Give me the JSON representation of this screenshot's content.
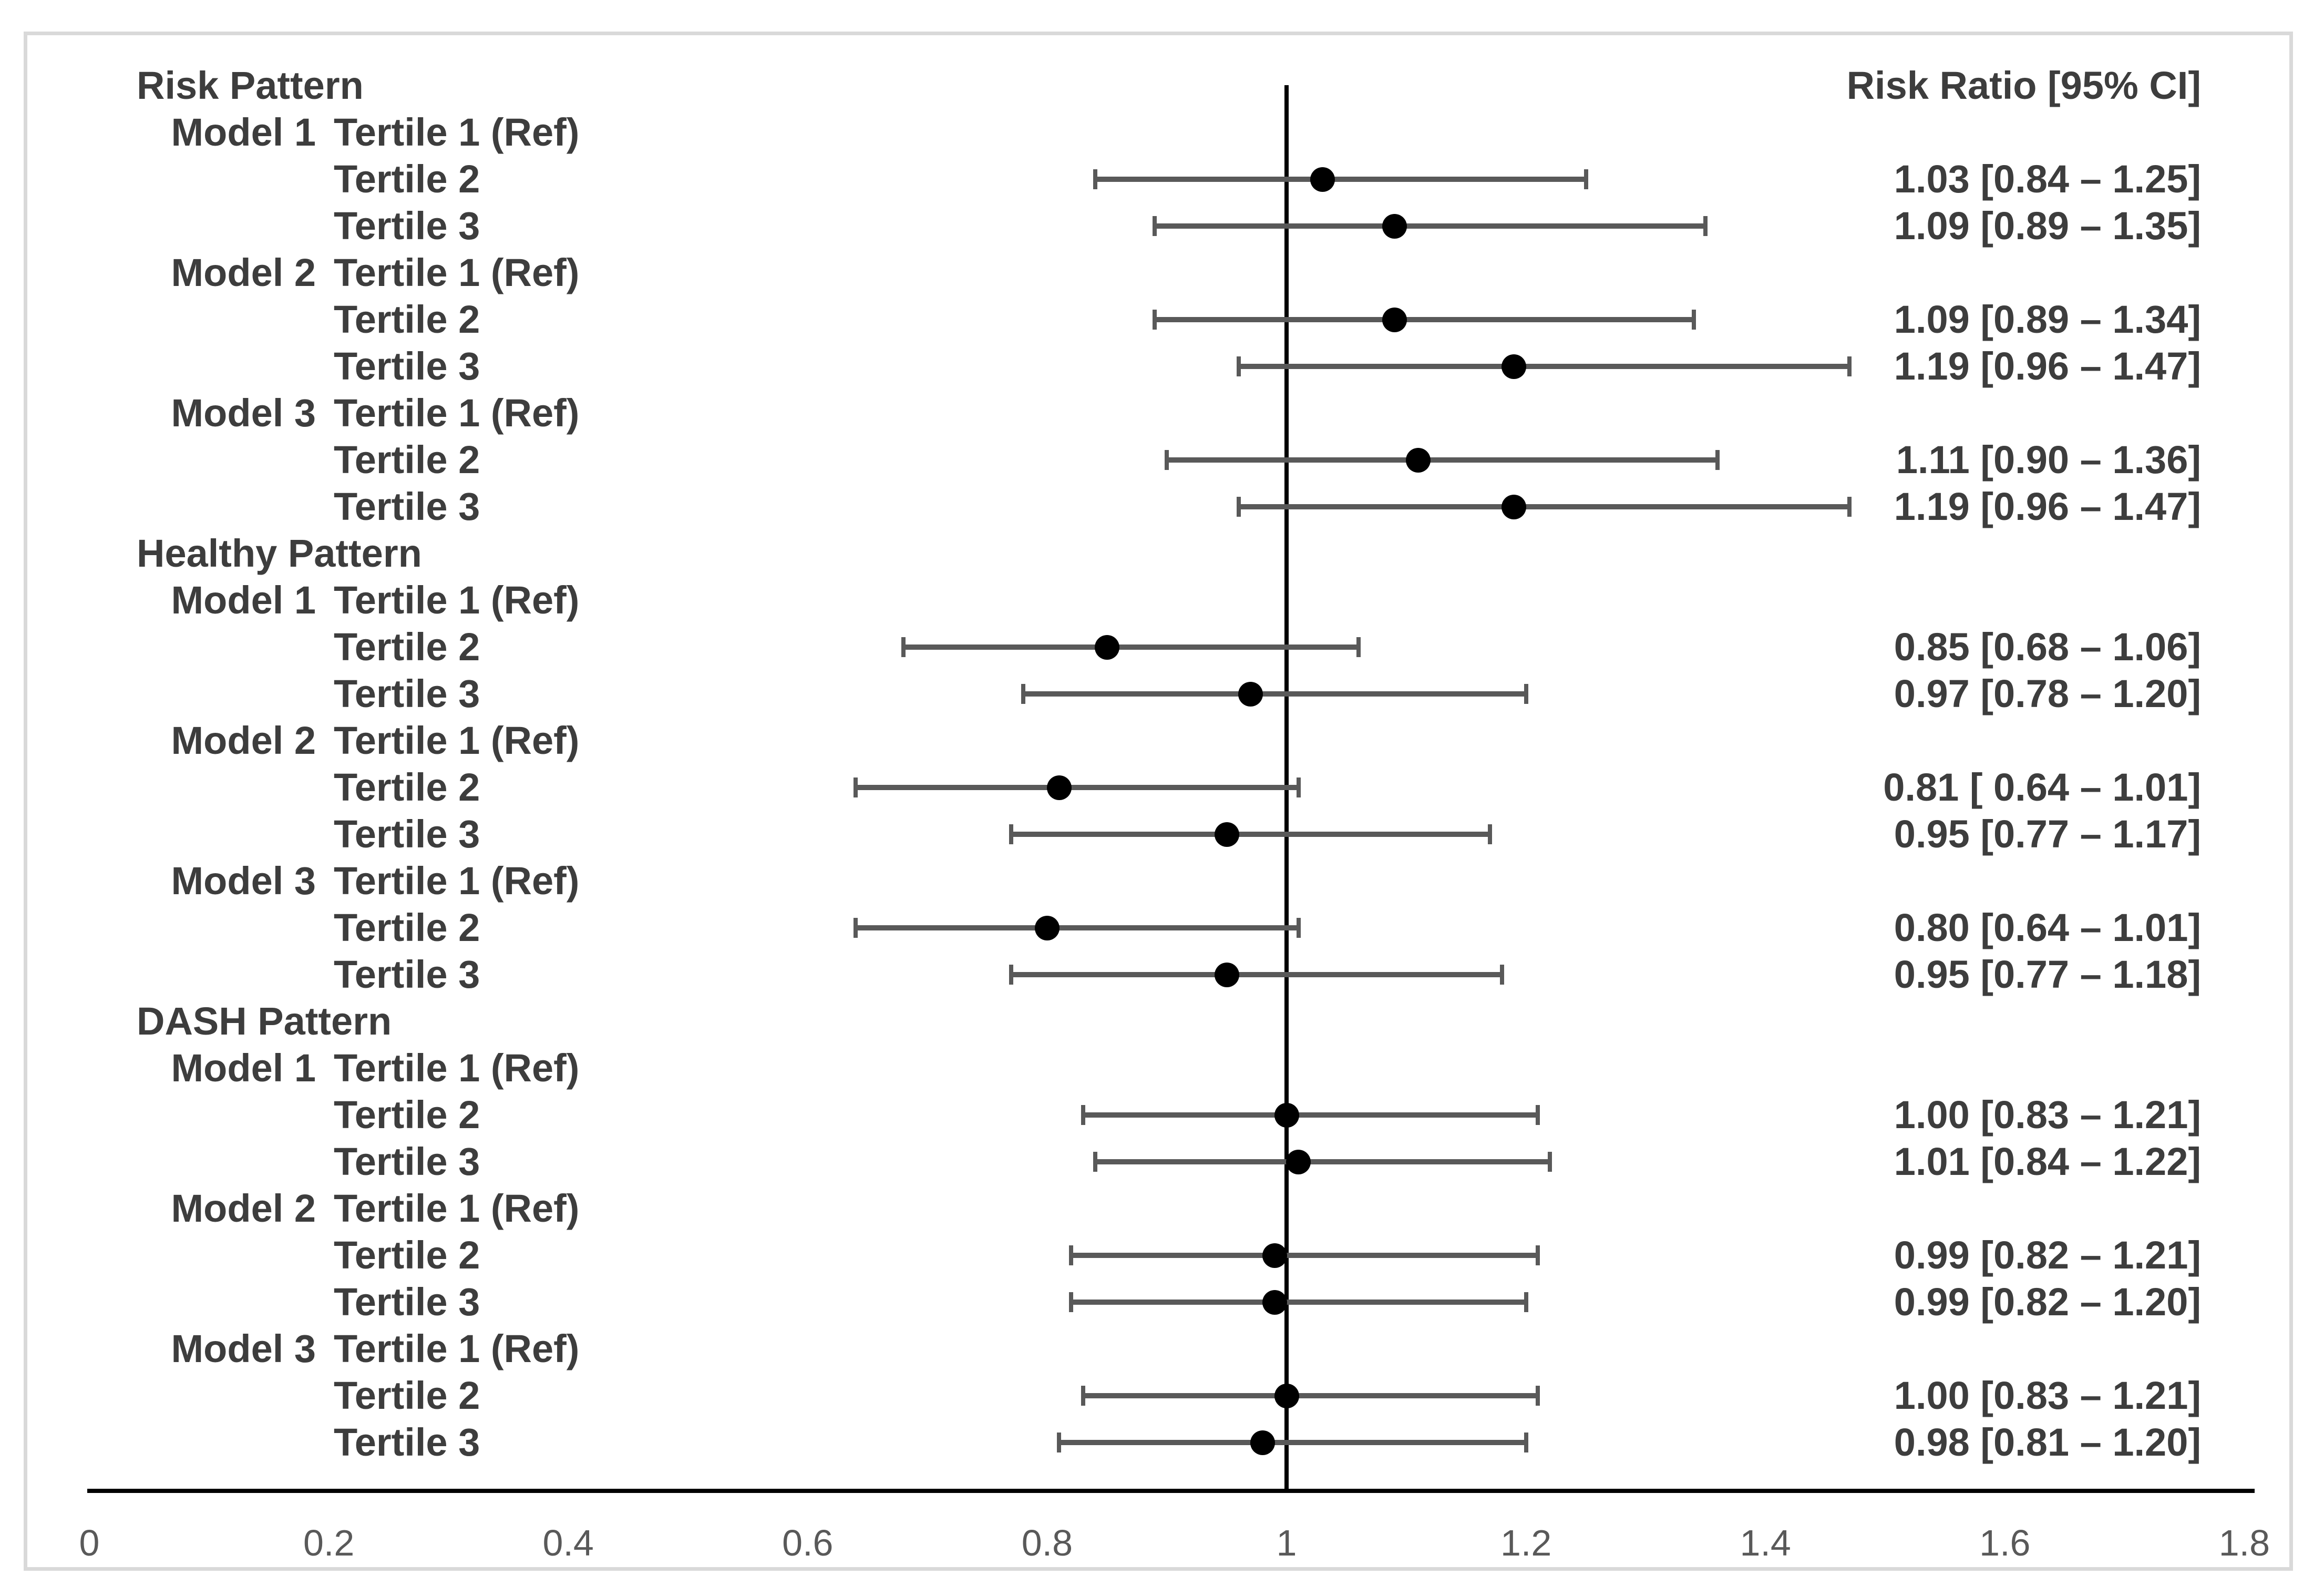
{
  "figure": {
    "colors": {
      "label_text": "#3d3d3d",
      "tick_text": "#595959",
      "marker": "#000000",
      "ci_bar": "#595959",
      "axis_line": "#000000",
      "reference_line": "#000000",
      "figure_border": "#d9d9d9",
      "background": "#ffffff"
    }
  },
  "chart_data": {
    "type": "scatter",
    "subtype": "forest-plot",
    "title": "",
    "xlabel": "",
    "ylabel": "",
    "value_column_header": "Risk Ratio [95% CI]",
    "x_range": [
      0,
      1.8
    ],
    "x_ticks": [
      0,
      0.2,
      0.4,
      0.6,
      0.8,
      1,
      1.2,
      1.4,
      1.6,
      1.8
    ],
    "x_tick_labels": [
      "0",
      "0.2",
      "0.4",
      "0.6",
      "0.8",
      "1",
      "1.2",
      "1.4",
      "1.6",
      "1.8"
    ],
    "reference_line_value": 1,
    "grid": false,
    "rows": [
      {
        "kind": "pattern",
        "label": "Risk Pattern"
      },
      {
        "kind": "ref",
        "model": "Model 1",
        "label": "Tertile 1 (Ref)"
      },
      {
        "kind": "data",
        "label": "Tertile 2",
        "estimate": 1.03,
        "ci_low": 0.84,
        "ci_high": 1.25,
        "text": "1.03 [0.84 – 1.25]"
      },
      {
        "kind": "data",
        "label": "Tertile 3",
        "estimate": 1.09,
        "ci_low": 0.89,
        "ci_high": 1.35,
        "text": "1.09 [0.89 – 1.35]"
      },
      {
        "kind": "ref",
        "model": "Model 2",
        "label": "Tertile 1 (Ref)"
      },
      {
        "kind": "data",
        "label": "Tertile 2",
        "estimate": 1.09,
        "ci_low": 0.89,
        "ci_high": 1.34,
        "text": "1.09 [0.89 – 1.34]"
      },
      {
        "kind": "data",
        "label": "Tertile 3",
        "estimate": 1.19,
        "ci_low": 0.96,
        "ci_high": 1.47,
        "text": "1.19 [0.96 – 1.47]"
      },
      {
        "kind": "ref",
        "model": "Model 3",
        "label": "Tertile 1 (Ref)"
      },
      {
        "kind": "data",
        "label": "Tertile 2",
        "estimate": 1.11,
        "ci_low": 0.9,
        "ci_high": 1.36,
        "text": "1.11 [0.90 – 1.36]"
      },
      {
        "kind": "data",
        "label": "Tertile 3",
        "estimate": 1.19,
        "ci_low": 0.96,
        "ci_high": 1.47,
        "text": "1.19 [0.96 – 1.47]"
      },
      {
        "kind": "pattern",
        "label": "Healthy Pattern"
      },
      {
        "kind": "ref",
        "model": "Model 1",
        "label": "Tertile 1 (Ref)"
      },
      {
        "kind": "data",
        "label": "Tertile 2",
        "estimate": 0.85,
        "ci_low": 0.68,
        "ci_high": 1.06,
        "text": "0.85 [0.68 – 1.06]"
      },
      {
        "kind": "data",
        "label": "Tertile 3",
        "estimate": 0.97,
        "ci_low": 0.78,
        "ci_high": 1.2,
        "text": "0.97 [0.78 – 1.20]"
      },
      {
        "kind": "ref",
        "model": "Model 2",
        "label": "Tertile 1 (Ref)"
      },
      {
        "kind": "data",
        "label": "Tertile 2",
        "estimate": 0.81,
        "ci_low": 0.64,
        "ci_high": 1.01,
        "text": "0.81 [ 0.64 – 1.01]"
      },
      {
        "kind": "data",
        "label": "Tertile 3",
        "estimate": 0.95,
        "ci_low": 0.77,
        "ci_high": 1.17,
        "text": "0.95 [0.77 – 1.17]"
      },
      {
        "kind": "ref",
        "model": "Model 3",
        "label": "Tertile 1 (Ref)"
      },
      {
        "kind": "data",
        "label": "Tertile 2",
        "estimate": 0.8,
        "ci_low": 0.64,
        "ci_high": 1.01,
        "text": "0.80 [0.64 – 1.01]"
      },
      {
        "kind": "data",
        "label": "Tertile 3",
        "estimate": 0.95,
        "ci_low": 0.77,
        "ci_high": 1.18,
        "text": "0.95 [0.77 – 1.18]"
      },
      {
        "kind": "pattern",
        "label": "DASH Pattern"
      },
      {
        "kind": "ref",
        "model": "Model 1",
        "label": "Tertile 1 (Ref)"
      },
      {
        "kind": "data",
        "label": "Tertile 2",
        "estimate": 1.0,
        "ci_low": 0.83,
        "ci_high": 1.21,
        "text": "1.00 [0.83 – 1.21]"
      },
      {
        "kind": "data",
        "label": "Tertile 3",
        "estimate": 1.01,
        "ci_low": 0.84,
        "ci_high": 1.22,
        "text": "1.01 [0.84 – 1.22]"
      },
      {
        "kind": "ref",
        "model": "Model 2",
        "label": "Tertile 1 (Ref)"
      },
      {
        "kind": "data",
        "label": "Tertile 2",
        "estimate": 0.99,
        "ci_low": 0.82,
        "ci_high": 1.21,
        "text": "0.99 [0.82 – 1.21]"
      },
      {
        "kind": "data",
        "label": "Tertile 3",
        "estimate": 0.99,
        "ci_low": 0.82,
        "ci_high": 1.2,
        "text": "0.99 [0.82 – 1.20]"
      },
      {
        "kind": "ref",
        "model": "Model 3",
        "label": "Tertile 1 (Ref)"
      },
      {
        "kind": "data",
        "label": "Tertile 2",
        "estimate": 1.0,
        "ci_low": 0.83,
        "ci_high": 1.21,
        "text": "1.00 [0.83 – 1.21]"
      },
      {
        "kind": "data",
        "label": "Tertile 3",
        "estimate": 0.98,
        "ci_low": 0.81,
        "ci_high": 1.2,
        "text": "0.98 [0.81 – 1.20]"
      }
    ]
  }
}
